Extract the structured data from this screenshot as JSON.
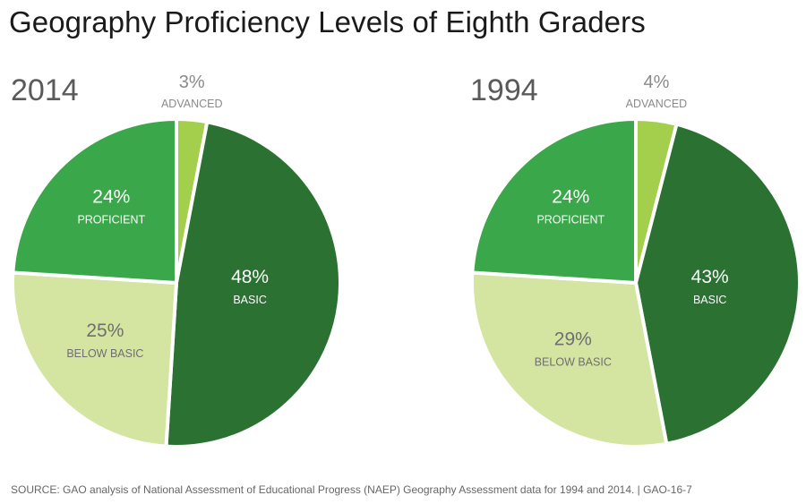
{
  "title": "Geography Proficiency Levels of Eighth Graders",
  "source": "SOURCE: GAO analysis of National Assessment of Educational Progress (NAEP) Geography Assessment data for 1994 and 2014.  |  GAO-16-7",
  "colors": {
    "advanced": "#a3cf4c",
    "basic": "#2a7132",
    "below_basic": "#d3e5a0",
    "proficient": "#3aa84a",
    "label_dark_text": "#ffffff",
    "label_light_text": "#6f6f6f",
    "advanced_label_text": "#8a8a8a"
  },
  "chart_data": [
    {
      "type": "pie",
      "year": "2014",
      "slices": [
        {
          "key": "advanced",
          "label": "ADVANCED",
          "value": 3,
          "pct": "3%"
        },
        {
          "key": "basic",
          "label": "BASIC",
          "value": 48,
          "pct": "48%"
        },
        {
          "key": "below_basic",
          "label": "BELOW BASIC",
          "value": 25,
          "pct": "25%"
        },
        {
          "key": "proficient",
          "label": "PROFICIENT",
          "value": 24,
          "pct": "24%"
        }
      ]
    },
    {
      "type": "pie",
      "year": "1994",
      "slices": [
        {
          "key": "advanced",
          "label": "ADVANCED",
          "value": 4,
          "pct": "4%"
        },
        {
          "key": "basic",
          "label": "BASIC",
          "value": 43,
          "pct": "43%"
        },
        {
          "key": "below_basic",
          "label": "BELOW BASIC",
          "value": 29,
          "pct": "29%"
        },
        {
          "key": "proficient",
          "label": "PROFICIENT",
          "value": 24,
          "pct": "24%"
        }
      ]
    }
  ]
}
